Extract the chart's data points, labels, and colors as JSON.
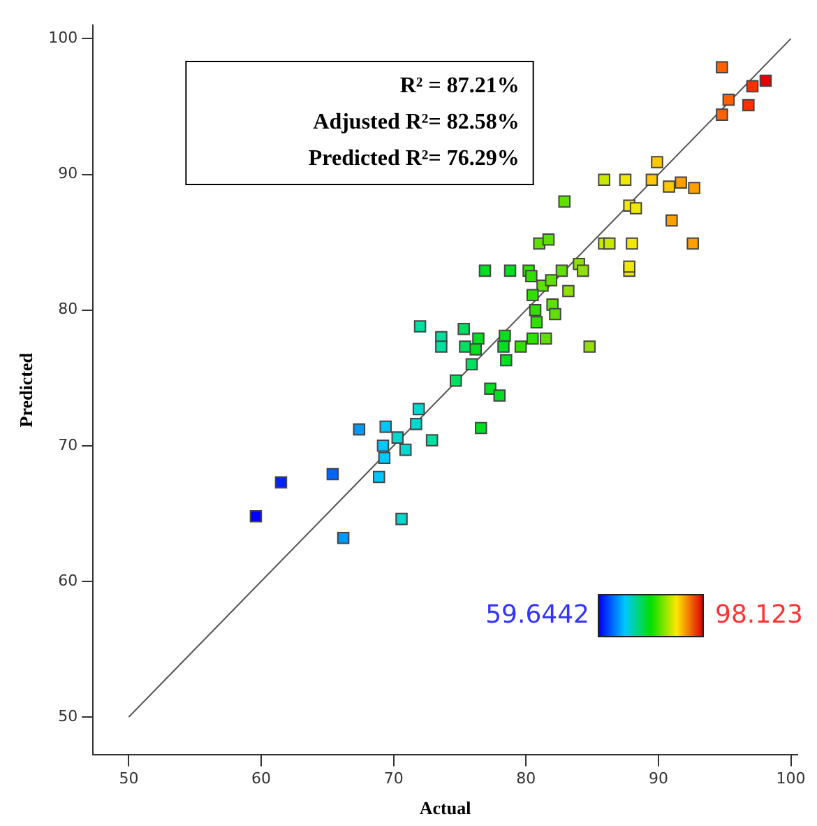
{
  "chart_data": {
    "type": "scatter",
    "xlabel": "Actual",
    "ylabel": "Predicted",
    "annotations": [
      "R² = 87.21%",
      "Adjusted R²= 82.58%",
      "Predicted R²= 76.29%",
      "59.6442",
      "98.123"
    ],
    "xlim": [
      47.3,
      100.5
    ],
    "ylim": [
      47.2,
      101
    ],
    "xticks": [
      50,
      60,
      70,
      80,
      90,
      100
    ],
    "yticks": [
      50,
      60,
      70,
      80,
      90,
      100
    ],
    "grid": false,
    "legend": false,
    "series": [
      {
        "type": "line",
        "color": "#555555",
        "marker": "none",
        "x": [
          50,
          100
        ],
        "values": [
          50,
          100
        ]
      },
      {
        "marker": "square",
        "x": [
          59.6,
          61.5,
          65.4,
          66.2,
          67.4,
          69.4,
          71.9,
          71.7,
          72.9,
          70.3,
          70.9,
          69.2,
          69.3,
          68.9,
          70.6,
          82.9,
          81.0,
          81.7,
          76.9,
          78.8,
          80.2,
          80.4,
          82.7,
          84.0,
          84.3,
          81.25,
          81.9,
          80.5,
          83.2,
          80.7,
          82.0,
          82.2,
          80.8,
          72.0,
          73.6,
          73.6,
          75.3,
          75.4,
          76.4,
          76.2,
          78.4,
          78.3,
          78.5,
          79.6,
          80.5,
          81.5,
          75.9,
          74.7,
          77.3,
          78.0,
          76.6,
          84.8,
          85.9,
          86.3,
          88.0,
          87.8,
          94.8,
          97.1,
          98.1,
          96.8,
          95.3,
          94.8,
          89.9,
          89.5,
          87.5,
          85.9,
          90.8,
          91.7,
          92.7,
          87.8,
          88.3,
          91.0,
          92.6,
          87.8
        ],
        "values": [
          64.8,
          67.3,
          67.9,
          63.2,
          71.2,
          71.4,
          72.7,
          71.6,
          70.4,
          70.6,
          69.7,
          70.0,
          69.1,
          67.7,
          64.6,
          88.0,
          84.9,
          85.2,
          82.9,
          82.9,
          82.9,
          82.5,
          82.9,
          83.4,
          82.9,
          81.8,
          82.2,
          81.1,
          81.4,
          80.0,
          80.4,
          79.7,
          79.1,
          78.8,
          78.0,
          77.3,
          78.6,
          77.3,
          77.9,
          77.1,
          78.1,
          77.3,
          76.3,
          77.3,
          77.9,
          77.9,
          76.0,
          74.8,
          74.2,
          73.7,
          71.3,
          77.3,
          84.9,
          84.9,
          84.9,
          82.9,
          97.9,
          96.5,
          96.9,
          95.1,
          95.5,
          94.4,
          90.9,
          89.6,
          89.6,
          89.6,
          89.1,
          89.4,
          89.0,
          87.7,
          87.5,
          86.6,
          84.9,
          83.2
        ],
        "colors": [
          "#0000ff",
          "#0022ff",
          "#0066ff",
          "#0099ff",
          "#0099ff",
          "#00c8ff",
          "#00d8d0",
          "#00d8d0",
          "#00e0a0",
          "#00d8d0",
          "#00d8d0",
          "#00c8ff",
          "#00c8ff",
          "#00c8ff",
          "#00d8d0",
          "#60e000",
          "#60e000",
          "#60e000",
          "#00e020",
          "#00e020",
          "#30e000",
          "#30e000",
          "#60e000",
          "#90e000",
          "#90e000",
          "#60e000",
          "#60e000",
          "#30e000",
          "#90e000",
          "#30e000",
          "#60e000",
          "#60e000",
          "#30e000",
          "#00e0a0",
          "#00e0a0",
          "#00e0a0",
          "#00e060",
          "#00e060",
          "#00e020",
          "#00e020",
          "#00e020",
          "#00e020",
          "#00e020",
          "#30e000",
          "#30e000",
          "#60e000",
          "#00e060",
          "#00e060",
          "#00e020",
          "#00e020",
          "#00e020",
          "#90e000",
          "#c8e800",
          "#c8e800",
          "#f0e800",
          "#f0e800",
          "#ff6000",
          "#ff3000",
          "#e80000",
          "#ff3000",
          "#ff6000",
          "#ff6000",
          "#ffc800",
          "#ffc800",
          "#f0e800",
          "#c8e800",
          "#ffc800",
          "#ffa000",
          "#ffa000",
          "#f0e800",
          "#f0e800",
          "#ffa000",
          "#ffa000",
          "#f0e800"
        ]
      }
    ]
  }
}
